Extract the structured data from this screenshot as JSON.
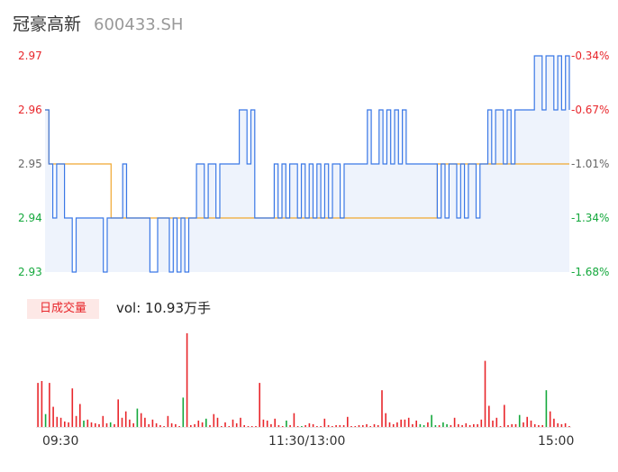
{
  "header": {
    "name": "冠豪高新",
    "code": "600433.SH"
  },
  "price_axis": {
    "left_ticks": [
      {
        "label": "2.97",
        "tone": "red"
      },
      {
        "label": "2.96",
        "tone": "red"
      },
      {
        "label": "2.95",
        "tone": "gray"
      },
      {
        "label": "2.94",
        "tone": "green"
      },
      {
        "label": "2.93",
        "tone": "green"
      }
    ],
    "right_ticks": [
      {
        "label": "-0.34%",
        "tone": "red"
      },
      {
        "label": "-0.67%",
        "tone": "red"
      },
      {
        "label": "-1.01%",
        "tone": "gray"
      },
      {
        "label": "-1.34%",
        "tone": "green"
      },
      {
        "label": "-1.68%",
        "tone": "green"
      }
    ]
  },
  "volume": {
    "badge": "日成交量",
    "text": "vol: 10.93万手"
  },
  "time_axis": {
    "labels": [
      "09:30",
      "11:30/13:00",
      "15:00"
    ]
  },
  "colors": {
    "price_line": "#3a78e6",
    "avg_line": "#f0a830",
    "up": "#e8262b",
    "down": "#14a83c",
    "area": "#eef3fc"
  },
  "chart_data": [
    {
      "type": "line",
      "ylim": [
        2.93,
        2.97
      ],
      "x_range": [
        "09:30",
        "15:00"
      ],
      "series": [
        {
          "values": [
            2.96,
            2.95,
            2.94,
            2.95,
            2.95,
            2.94,
            2.94,
            2.93,
            2.94,
            2.94,
            2.94,
            2.94,
            2.94,
            2.94,
            2.94,
            2.93,
            2.94,
            2.94,
            2.94,
            2.94,
            2.95,
            2.94,
            2.94,
            2.94,
            2.94,
            2.94,
            2.94,
            2.93,
            2.93,
            2.94,
            2.94,
            2.94,
            2.93,
            2.94,
            2.93,
            2.94,
            2.93,
            2.94,
            2.94,
            2.95,
            2.95,
            2.94,
            2.95,
            2.95,
            2.94,
            2.95,
            2.95,
            2.95,
            2.95,
            2.95,
            2.96,
            2.96,
            2.95,
            2.96,
            2.94,
            2.94,
            2.94,
            2.94,
            2.94,
            2.95,
            2.94,
            2.95,
            2.94,
            2.95,
            2.95,
            2.94,
            2.95,
            2.94,
            2.95,
            2.94,
            2.95,
            2.94,
            2.95,
            2.94,
            2.95,
            2.95,
            2.94,
            2.95,
            2.95,
            2.95,
            2.95,
            2.95,
            2.95,
            2.96,
            2.95,
            2.95,
            2.96,
            2.95,
            2.96,
            2.95,
            2.96,
            2.95,
            2.96,
            2.95,
            2.95,
            2.95,
            2.95,
            2.95,
            2.95,
            2.95,
            2.95,
            2.94,
            2.95,
            2.94,
            2.95,
            2.95,
            2.94,
            2.95,
            2.94,
            2.95,
            2.95,
            2.94,
            2.95,
            2.95,
            2.96,
            2.95,
            2.96,
            2.96,
            2.95,
            2.96,
            2.95,
            2.96,
            2.96,
            2.96,
            2.96,
            2.96,
            2.97,
            2.97,
            2.96,
            2.97,
            2.97,
            2.96,
            2.97,
            2.96,
            2.97,
            2.96
          ]
        },
        {
          "values": [
            2.96,
            2.95,
            2.95,
            2.95,
            2.95,
            2.95,
            2.95,
            2.95,
            2.95,
            2.95,
            2.95,
            2.95,
            2.95,
            2.95,
            2.95,
            2.95,
            2.95,
            2.94,
            2.94,
            2.94,
            2.94,
            2.94,
            2.94,
            2.94,
            2.94,
            2.94,
            2.94,
            2.94,
            2.94,
            2.94,
            2.94,
            2.94,
            2.94,
            2.94,
            2.94,
            2.94,
            2.94,
            2.94,
            2.94,
            2.94,
            2.94,
            2.94,
            2.94,
            2.94,
            2.94,
            2.94,
            2.94,
            2.94,
            2.94,
            2.94,
            2.94,
            2.94,
            2.94,
            2.94,
            2.94,
            2.94,
            2.94,
            2.94,
            2.94,
            2.94,
            2.94,
            2.94,
            2.94,
            2.94,
            2.94,
            2.94,
            2.94,
            2.94,
            2.94,
            2.94,
            2.94,
            2.94,
            2.94,
            2.94,
            2.94,
            2.94,
            2.94,
            2.94,
            2.94,
            2.94,
            2.94,
            2.94,
            2.94,
            2.94,
            2.94,
            2.94,
            2.94,
            2.94,
            2.94,
            2.94,
            2.94,
            2.94,
            2.94,
            2.94,
            2.94,
            2.94,
            2.94,
            2.94,
            2.94,
            2.94,
            2.94,
            2.95,
            2.95,
            2.95,
            2.95,
            2.95,
            2.95,
            2.95,
            2.95,
            2.95,
            2.95,
            2.95,
            2.95,
            2.95,
            2.95,
            2.95,
            2.95,
            2.95,
            2.95,
            2.95,
            2.95,
            2.95,
            2.95,
            2.95,
            2.95,
            2.95,
            2.95,
            2.95,
            2.95,
            2.95,
            2.95,
            2.95,
            2.95,
            2.95,
            2.95,
            2.95
          ]
        }
      ]
    },
    {
      "type": "bar",
      "values": [
        48,
        50,
        14,
        48,
        22,
        11,
        10,
        6,
        5,
        42,
        12,
        25,
        7,
        8,
        5,
        4,
        3,
        12,
        4,
        5,
        3,
        30,
        10,
        17,
        8,
        4,
        20,
        15,
        10,
        3,
        8,
        4,
        2,
        1,
        12,
        4,
        3,
        1,
        32,
        102,
        2,
        3,
        7,
        5,
        9,
        2,
        14,
        10,
        1,
        5,
        1,
        8,
        4,
        10,
        2,
        1,
        1,
        1,
        48,
        8,
        7,
        3,
        9,
        2,
        1,
        7,
        2,
        15,
        1,
        1,
        2,
        4,
        3,
        1,
        1,
        9,
        2,
        1,
        2,
        2,
        2,
        11,
        1,
        1,
        2,
        2,
        3,
        1,
        3,
        2,
        40,
        15,
        5,
        3,
        5,
        8,
        8,
        10,
        3,
        7,
        3,
        2,
        5,
        13,
        2,
        2,
        5,
        3,
        2,
        10,
        3,
        2,
        4,
        2,
        3,
        3,
        8,
        72,
        23,
        7,
        10,
        1,
        24,
        2,
        3,
        3,
        13,
        5,
        11,
        7,
        3,
        2,
        2,
        40,
        17,
        9,
        4,
        3,
        4,
        1
      ],
      "colors": [
        "u",
        "u",
        "d",
        "u",
        "u",
        "u",
        "u",
        "u",
        "u",
        "u",
        "u",
        "u",
        "d",
        "u",
        "u",
        "u",
        "u",
        "u",
        "u",
        "d",
        "u",
        "u",
        "u",
        "u",
        "u",
        "u",
        "d",
        "u",
        "u",
        "u",
        "u",
        "u",
        "u",
        "u",
        "u",
        "u",
        "u",
        "u",
        "d",
        "u",
        "u",
        "u",
        "u",
        "u",
        "d",
        "u",
        "u",
        "u",
        "u",
        "u",
        "u",
        "u",
        "u",
        "u",
        "u",
        "u",
        "u",
        "u",
        "u",
        "u",
        "u",
        "u",
        "u",
        "u",
        "u",
        "d",
        "u",
        "u",
        "u",
        "d",
        "u",
        "u",
        "u",
        "u",
        "u",
        "u",
        "u",
        "u",
        "u",
        "u",
        "u",
        "u",
        "u",
        "u",
        "u",
        "u",
        "u",
        "u",
        "u",
        "u",
        "u",
        "u",
        "u",
        "u",
        "u",
        "u",
        "u",
        "u",
        "u",
        "u",
        "d",
        "d",
        "u",
        "d",
        "d",
        "u",
        "d",
        "d",
        "u",
        "u",
        "u",
        "u",
        "u",
        "u",
        "u",
        "u",
        "u",
        "u",
        "u",
        "u",
        "u",
        "u",
        "u",
        "u",
        "u",
        "u",
        "d",
        "u",
        "u",
        "u",
        "u",
        "u",
        "u",
        "d",
        "u",
        "u",
        "u",
        "u",
        "u",
        "u"
      ]
    }
  ]
}
